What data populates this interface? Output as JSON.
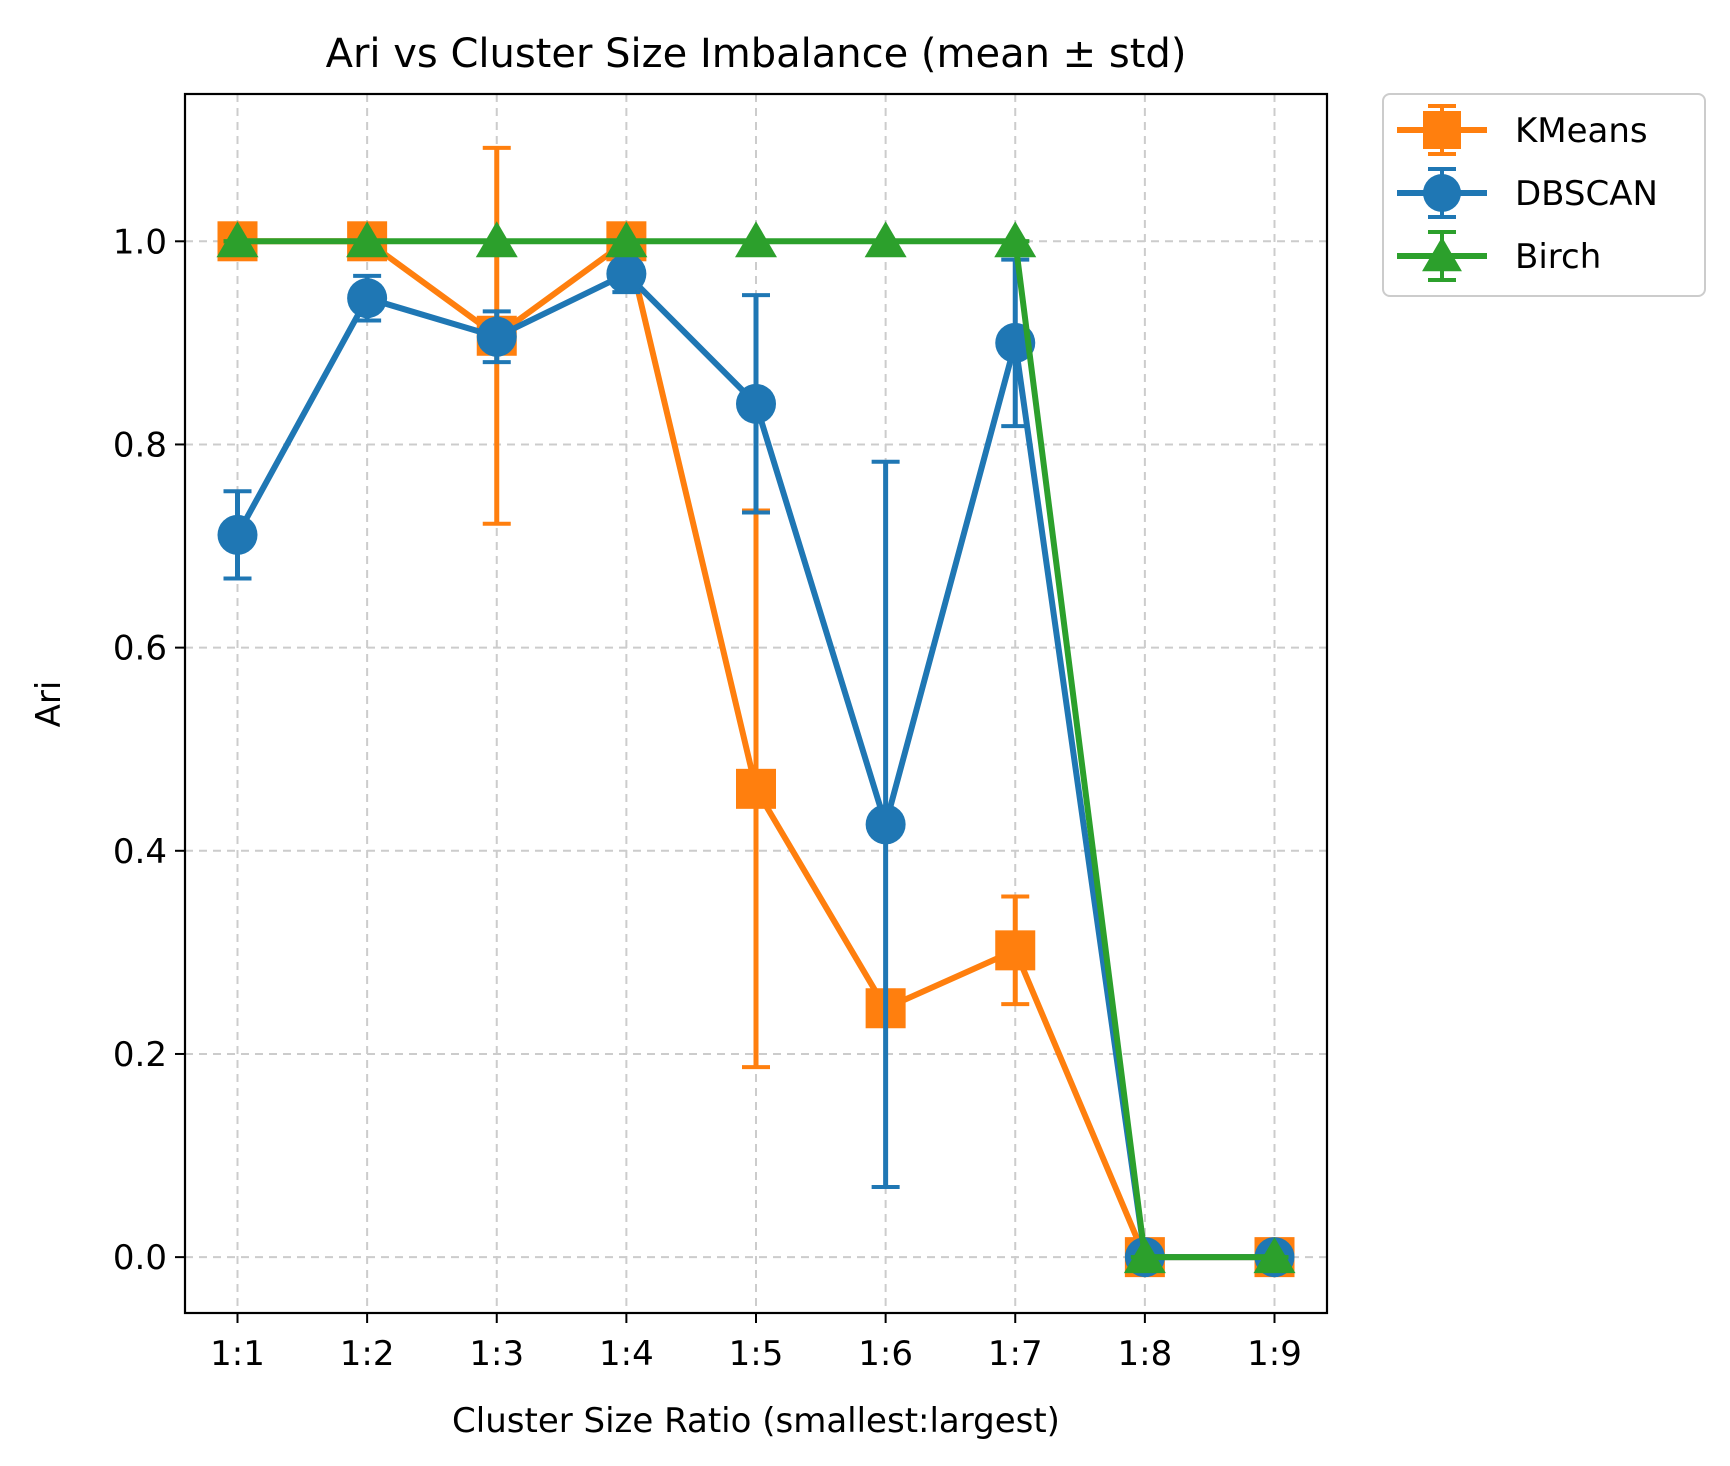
{
  "chart_data": {
    "type": "line",
    "title": "Ari vs Cluster Size Imbalance (mean ± std)",
    "xlabel": "Cluster Size Ratio (smallest:largest)",
    "ylabel": "Ari",
    "categories": [
      "1:1",
      "1:2",
      "1:3",
      "1:4",
      "1:5",
      "1:6",
      "1:7",
      "1:8",
      "1:9"
    ],
    "ylim": [
      -0.055,
      1.145
    ],
    "yticks": [
      0.0,
      0.2,
      0.4,
      0.6,
      0.8,
      1.0
    ],
    "ytick_labels": [
      "0.0",
      "0.2",
      "0.4",
      "0.6",
      "0.8",
      "1.0"
    ],
    "grid": true,
    "legend_position": "outside top-right",
    "series": [
      {
        "name": "KMeans",
        "color": "#ff7f0e",
        "marker": "square",
        "values": [
          1.0,
          1.0,
          0.907,
          1.0,
          0.461,
          0.245,
          0.302,
          0.0,
          0.0
        ],
        "std": [
          0.0,
          0.0,
          0.185,
          0.0,
          0.274,
          0.0,
          0.053,
          0.0,
          0.0
        ]
      },
      {
        "name": "DBSCAN",
        "color": "#1f77b4",
        "marker": "circle",
        "values": [
          0.711,
          0.944,
          0.906,
          0.968,
          0.84,
          0.426,
          0.9,
          0.0,
          0.0
        ],
        "std": [
          0.043,
          0.022,
          0.025,
          0.018,
          0.107,
          0.357,
          0.082,
          0.0,
          0.0
        ]
      },
      {
        "name": "Birch",
        "color": "#2ca02c",
        "marker": "triangle",
        "values": [
          1.0,
          1.0,
          1.0,
          1.0,
          1.0,
          1.0,
          1.0,
          0.0,
          0.0
        ],
        "std": [
          0.0,
          0.0,
          0.0,
          0.0,
          0.0,
          0.0,
          0.0,
          0.0,
          0.0
        ]
      }
    ]
  }
}
